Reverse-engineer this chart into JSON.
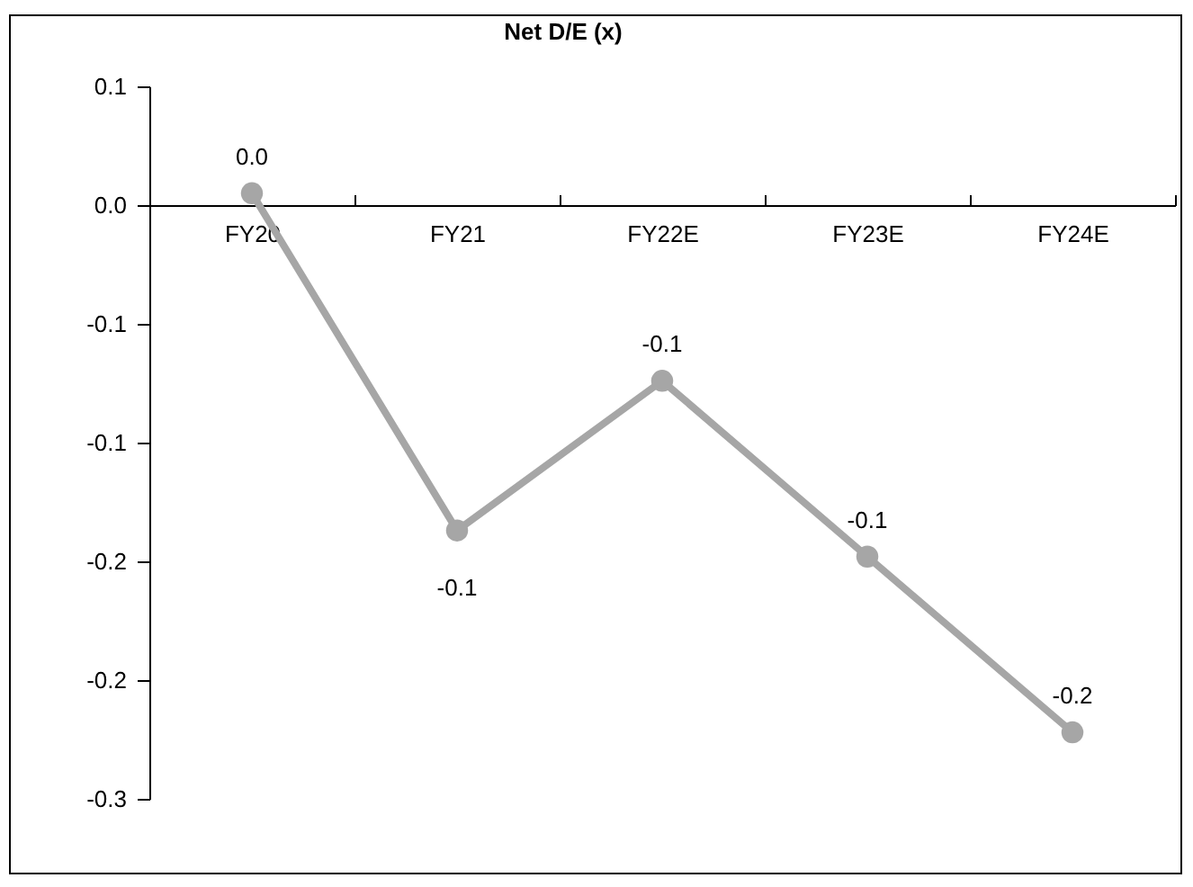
{
  "chart_data": {
    "type": "line",
    "title": "Net D/E (x)",
    "categories": [
      "FY20",
      "FY21",
      "FY22E",
      "FY23E",
      "FY24E"
    ],
    "series": [
      {
        "color": "#a6a6a6",
        "values": [
          0.005,
          -0.137,
          -0.074,
          -0.148,
          -0.222
        ],
        "value_labels": [
          "0.0",
          "-0.1",
          "-0.1",
          "-0.1",
          "-0.2"
        ]
      }
    ],
    "ylim": [
      -0.25,
      0.05
    ],
    "yticks": [
      {
        "value": 0.05,
        "label": "0.1"
      },
      {
        "value": 0,
        "label": "0.0"
      },
      {
        "value": -0.05,
        "label": "-0.1"
      },
      {
        "value": -0.1,
        "label": "-0.1"
      },
      {
        "value": -0.15,
        "label": "-0.2"
      },
      {
        "value": -0.2,
        "label": "-0.2"
      },
      {
        "value": -0.25,
        "label": "-0.3"
      }
    ],
    "marker": "circle",
    "grid": false,
    "legend": false
  }
}
